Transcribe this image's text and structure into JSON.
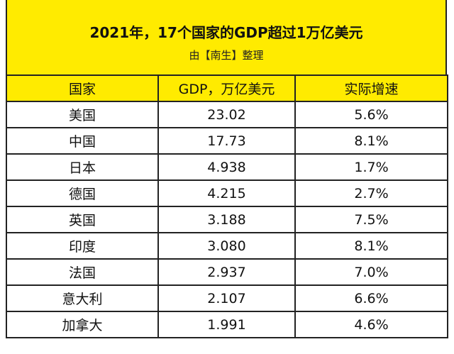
{
  "header": {
    "title": "2021年，17个国家的GDP超过1万亿美元",
    "subtitle": "由【南生】整理"
  },
  "table": {
    "columns": [
      "国家",
      "GDP，万亿美元",
      "实际增速"
    ],
    "rows": [
      [
        "美国",
        "23.02",
        "5.6%"
      ],
      [
        "中国",
        "17.73",
        "8.1%"
      ],
      [
        "日本",
        "4.938",
        "1.7%"
      ],
      [
        "德国",
        "4.215",
        "2.7%"
      ],
      [
        "英国",
        "3.188",
        "7.5%"
      ],
      [
        "印度",
        "3.080",
        "8.1%"
      ],
      [
        "法国",
        "2.937",
        "7.0%"
      ],
      [
        "意大利",
        "2.107",
        "6.6%"
      ],
      [
        "加拿大",
        "1.991",
        "4.6%"
      ]
    ]
  }
}
